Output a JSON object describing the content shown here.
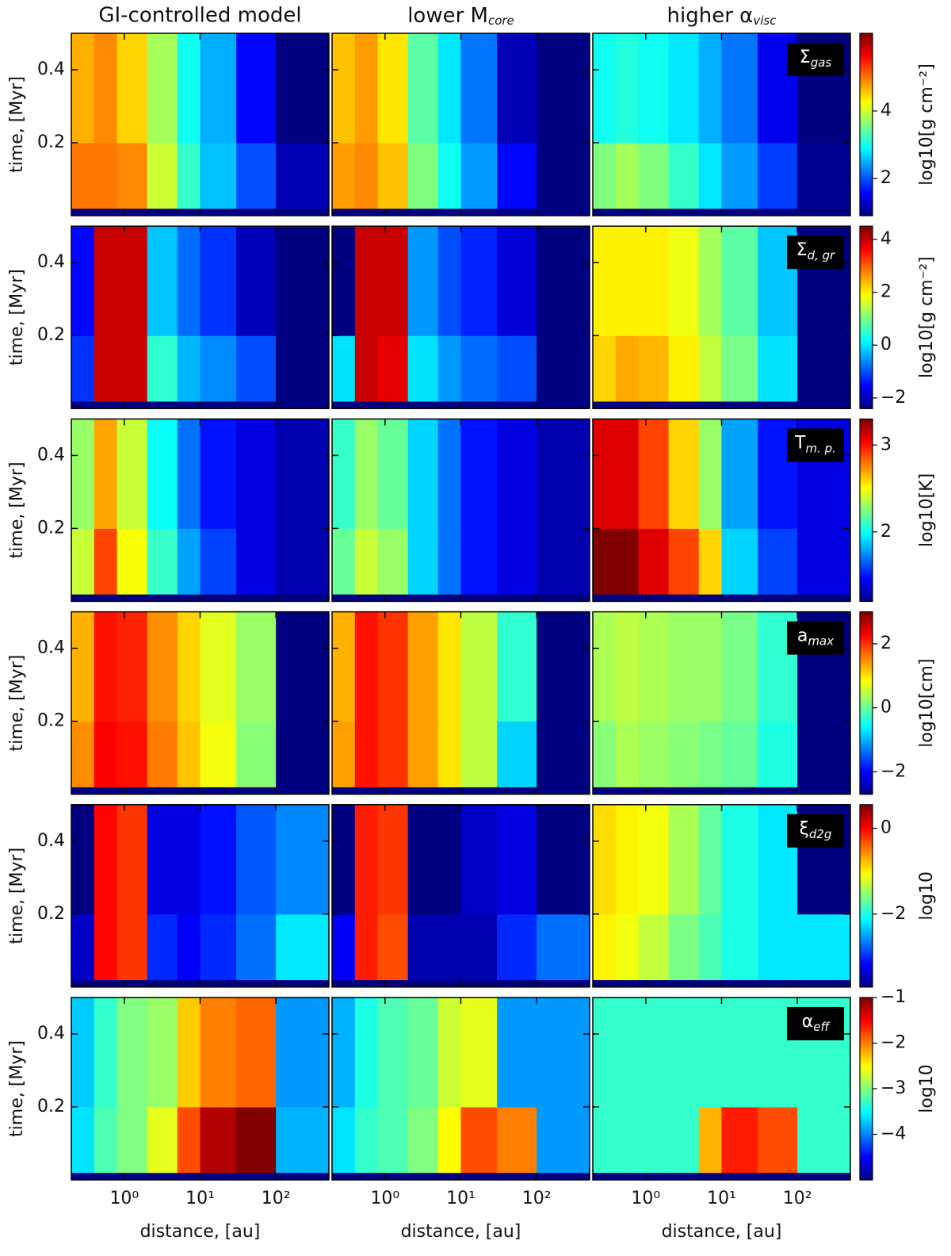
{
  "chart_data": {
    "type": "heatmap",
    "colormap": "jet",
    "columns": [
      "GI-controlled model",
      {
        "text": "lower M",
        "sub": "core"
      },
      {
        "text": "higher α",
        "sub": "visc"
      }
    ],
    "xlabel": "distance, [au]",
    "ylabel": "time, [Myr]",
    "log_x": true,
    "xlim": [
      0.2,
      500
    ],
    "xticks": [
      {
        "value": 1,
        "label": "10⁰"
      },
      {
        "value": 10,
        "label": "10¹"
      },
      {
        "value": 100,
        "label": "10²"
      }
    ],
    "ylim": [
      0,
      0.5
    ],
    "yticks": [
      0.2,
      0.4
    ],
    "xbins": [
      0.2,
      0.4,
      0.8,
      2,
      5,
      10,
      30,
      100,
      500
    ],
    "ybins": [
      0.02,
      0.2,
      0.5
    ],
    "rows": [
      {
        "label": {
          "text": "Σ",
          "sub": "gas"
        },
        "colorbar_label": "log10[g cm⁻²]",
        "clim": [
          0.9,
          6.3
        ],
        "cticks": [
          2,
          4
        ],
        "panels": [
          [
            [
              5,
              5,
              4.9,
              4,
              3.2,
              2.6,
              2,
              1.2
            ],
            [
              4.7,
              4.9,
              4.5,
              3.8,
              3,
              2.5,
              1.6,
              0.9
            ]
          ],
          [
            [
              4.8,
              4.9,
              4.6,
              3.6,
              3,
              2.4,
              1.6,
              0.9
            ],
            [
              4.6,
              4.8,
              4.4,
              3.4,
              2.8,
              2.2,
              1.2,
              0.9
            ]
          ],
          [
            [
              3.6,
              3.8,
              3.6,
              3.2,
              2.8,
              2.4,
              1.9,
              1
            ],
            [
              3,
              3.1,
              3,
              2.8,
              2.5,
              2.2,
              1.5,
              0.9
            ]
          ]
        ]
      },
      {
        "label": {
          "text": "Σ",
          "sub": "d, gr"
        },
        "colorbar_label": "log10[g cm⁻²]",
        "clim": [
          -2.4,
          4.5
        ],
        "cticks": [
          {
            "value": -2,
            "label": "−2"
          },
          0,
          2,
          4
        ],
        "panels": [
          [
            [
              -1.2,
              4,
              4,
              0.5,
              -0.3,
              -0.6,
              -1,
              -2.4
            ],
            [
              -1.5,
              4,
              4,
              -0.2,
              -0.8,
              -1.2,
              -2,
              -2.4
            ]
          ],
          [
            [
              0,
              4,
              3.8,
              0,
              -0.5,
              -0.8,
              -1,
              -2.4
            ],
            [
              -2.4,
              4,
              4,
              -0.5,
              -1,
              -1.3,
              -1.8,
              -2.4
            ]
          ],
          [
            [
              2.2,
              2.5,
              2.4,
              2,
              1.5,
              1,
              0,
              -2.4
            ],
            [
              2,
              2,
              2,
              1.8,
              1.3,
              0.8,
              -0.2,
              -2.4
            ]
          ]
        ]
      },
      {
        "label": {
          "text": "T",
          "sub": "m. p."
        },
        "colorbar_label": "log10[K]",
        "clim": [
          1.2,
          3.3
        ],
        "cticks": [
          2,
          3
        ],
        "panels": [
          [
            [
              2.4,
              2.9,
              2.5,
              2.1,
              1.8,
              1.6,
              1.4,
              1.3
            ],
            [
              2.3,
              2.7,
              2.4,
              2,
              1.7,
              1.5,
              1.4,
              1.3
            ]
          ],
          [
            [
              2.2,
              2.4,
              2.3,
              1.9,
              1.7,
              1.5,
              1.4,
              1.3
            ],
            [
              2.1,
              2.3,
              2.2,
              1.9,
              1.7,
              1.5,
              1.4,
              1.3
            ]
          ],
          [
            [
              3.3,
              3.3,
              3.1,
              2.9,
              2.6,
              1.9,
              1.6,
              1.4
            ],
            [
              3.1,
              3.1,
              2.9,
              2.6,
              2.3,
              1.8,
              1.5,
              1.4
            ]
          ]
        ]
      },
      {
        "label": {
          "text": "a",
          "sub": "max"
        },
        "colorbar_label": "log10[cm]",
        "clim": [
          -2.7,
          3
        ],
        "cticks": [
          {
            "value": -2,
            "label": "−2"
          },
          0,
          2
        ],
        "panels": [
          [
            [
              1.5,
              2.3,
              2.2,
              1.6,
              1.2,
              0.8,
              0.2,
              -2.7
            ],
            [
              1.3,
              2.2,
              2.1,
              1.5,
              1.1,
              0.7,
              0.3,
              -2.7
            ]
          ],
          [
            [
              1.4,
              2.2,
              2,
              1.4,
              1,
              0.5,
              -0.8,
              -2.7
            ],
            [
              1.3,
              2.2,
              2,
              1.4,
              1,
              0.5,
              -0.3,
              -2.7
            ]
          ],
          [
            [
              0.2,
              0.4,
              0.3,
              0.2,
              0.1,
              0,
              -0.4,
              -2.7
            ],
            [
              0.4,
              0.5,
              0.4,
              0.3,
              0.3,
              0.1,
              -0.3,
              -2.7
            ]
          ]
        ]
      },
      {
        "label": {
          "text": "ξ",
          "sub": "d2g"
        },
        "colorbar_label": "log10",
        "clim": [
          -3.7,
          0.55
        ],
        "cticks": [
          {
            "value": -2,
            "label": "−2"
          },
          0
        ],
        "panels": [
          [
            [
              -3.4,
              0,
              -0.2,
              -3,
              -3.2,
              -3,
              -2.7,
              -2.2
            ],
            [
              -3.7,
              0,
              -0.2,
              -3.3,
              -3.3,
              -3.1,
              -2.8,
              -2.6
            ]
          ],
          [
            [
              -3.2,
              -0.1,
              -0.3,
              -3.5,
              -3.5,
              -3.5,
              -3,
              -2.7
            ],
            [
              -3.7,
              -0.1,
              -0.2,
              -3.7,
              -3.7,
              -3.4,
              -3.3,
              -3.7
            ]
          ],
          [
            [
              -1,
              -1.1,
              -1.3,
              -1.6,
              -1.8,
              -2,
              -2.2,
              -2.2
            ],
            [
              -0.9,
              -1,
              -1.1,
              -1.4,
              -1.7,
              -2,
              -2.2,
              -3.7
            ]
          ]
        ]
      },
      {
        "label": {
          "text": "α",
          "sub": "eff"
        },
        "colorbar_label": "log10",
        "clim": [
          -5,
          -1
        ],
        "cticks": [
          {
            "value": -4,
            "label": "−4"
          },
          {
            "value": -3,
            "label": "−3"
          },
          {
            "value": -2,
            "label": "−2"
          },
          {
            "value": -1,
            "label": "−1"
          }
        ],
        "panels": [
          [
            [
              -3.6,
              -3.2,
              -3,
              -2.6,
              -1.8,
              -1.2,
              -1,
              -3.8
            ],
            [
              -3.7,
              -3.3,
              -3,
              -2.9,
              -2.3,
              -2,
              -1.9,
              -3.9
            ]
          ],
          [
            [
              -3.6,
              -3.3,
              -3.2,
              -3,
              -2.5,
              -1.8,
              -2,
              -3.9
            ],
            [
              -3.8,
              -3.4,
              -3.2,
              -3.1,
              -2.7,
              -2.6,
              -3.9,
              -3.9
            ]
          ],
          [
            [
              -3.3,
              -3.3,
              -3.3,
              -3.3,
              -2.2,
              -1.6,
              -1.8,
              -3.3
            ],
            [
              -3.3,
              -3.3,
              -3.3,
              -3.3,
              -3.3,
              -3.3,
              -3.3,
              -3.3
            ]
          ]
        ]
      }
    ]
  }
}
